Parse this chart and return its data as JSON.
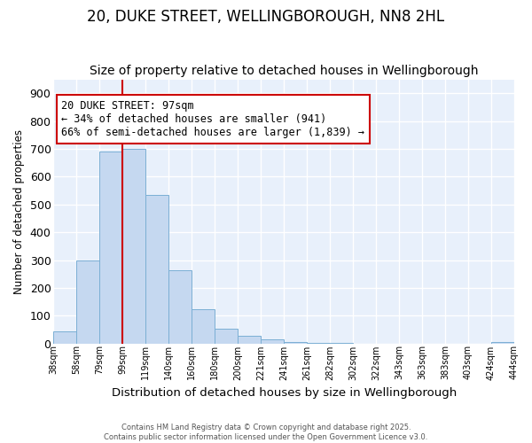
{
  "title1": "20, DUKE STREET, WELLINGBOROUGH, NN8 2HL",
  "title2": "Size of property relative to detached houses in Wellingborough",
  "xlabel": "Distribution of detached houses by size in Wellingborough",
  "ylabel": "Number of detached properties",
  "bin_labels": [
    "38sqm",
    "58sqm",
    "79sqm",
    "99sqm",
    "119sqm",
    "140sqm",
    "160sqm",
    "180sqm",
    "200sqm",
    "221sqm",
    "241sqm",
    "261sqm",
    "282sqm",
    "302sqm",
    "322sqm",
    "343sqm",
    "363sqm",
    "383sqm",
    "403sqm",
    "424sqm",
    "444sqm"
  ],
  "bar_values": [
    45,
    300,
    690,
    700,
    535,
    265,
    125,
    55,
    28,
    15,
    5,
    3,
    2,
    1,
    1,
    1,
    1,
    0,
    0,
    5
  ],
  "bar_color": "#c5d8f0",
  "bar_edge_color": "#7bafd4",
  "red_line_bin_index": 3,
  "annotation_text": "20 DUKE STREET: 97sqm\n← 34% of detached houses are smaller (941)\n66% of semi-detached houses are larger (1,839) →",
  "annotation_box_color": "#ffffff",
  "annotation_box_edge": "#cc0000",
  "ylim": [
    0,
    950
  ],
  "yticks": [
    0,
    100,
    200,
    300,
    400,
    500,
    600,
    700,
    800,
    900
  ],
  "footnote": "Contains HM Land Registry data © Crown copyright and database right 2025.\nContains public sector information licensed under the Open Government Licence v3.0.",
  "bg_color": "#ffffff",
  "plot_bg_color": "#e8f0fb",
  "grid_color": "#ffffff",
  "title_fontsize": 12,
  "subtitle_fontsize": 10,
  "annot_fontsize": 8.5
}
